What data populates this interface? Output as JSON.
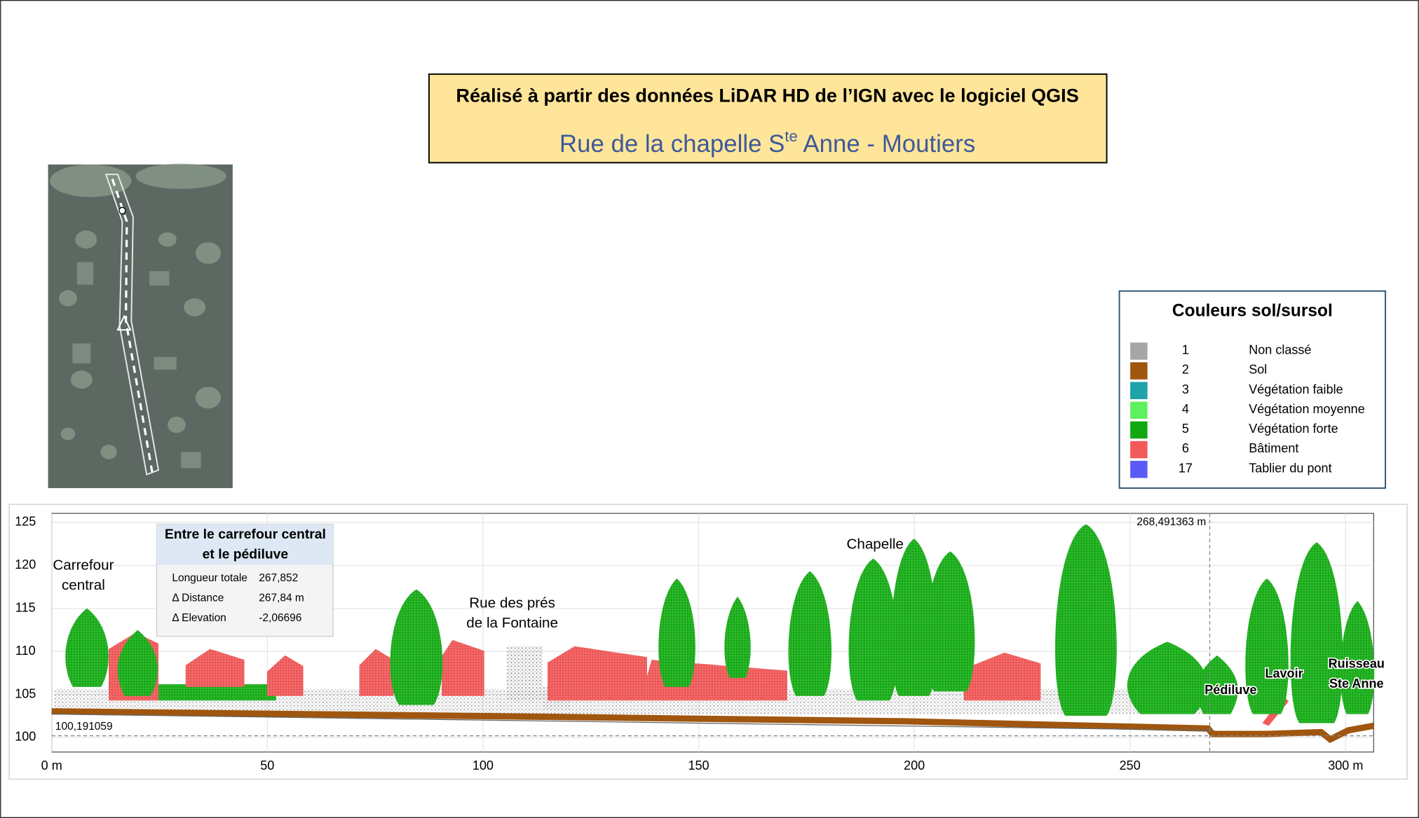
{
  "header": {
    "title": "Réalisé à partir des données LiDAR HD de l’IGN avec le logiciel QGIS",
    "subtitle": {
      "before": "Rue de la chapelle S",
      "sup": "te",
      "after": " Anne - Moutiers"
    }
  },
  "legend": {
    "title": "Couleurs sol/sursol",
    "items": [
      {
        "code": 1,
        "label": "Non classé",
        "color": "#a6a6a6"
      },
      {
        "code": 2,
        "label": "Sol",
        "color": "#a0560e"
      },
      {
        "code": 3,
        "label": "Végétation faible",
        "color": "#1fa3a8"
      },
      {
        "code": 4,
        "label": "Végétation moyenne",
        "color": "#5ef05e"
      },
      {
        "code": 5,
        "label": "Végétation forte",
        "color": "#12a812"
      },
      {
        "code": 6,
        "label": "Bâtiment",
        "color": "#f25a5a"
      },
      {
        "code": 17,
        "label": "Tablier du pont",
        "color": "#5a5af5"
      }
    ]
  },
  "chart_data": {
    "type": "profile",
    "xlim": [
      0,
      306.5
    ],
    "ylim": [
      98.3,
      126.05
    ],
    "xticks": [
      {
        "value": 0,
        "label": "0 m"
      },
      50,
      100,
      150,
      200,
      250,
      {
        "value": 300,
        "label": "300 m"
      }
    ],
    "yticks": [
      100,
      105,
      110,
      115,
      120,
      125
    ],
    "grid": true,
    "ref_lines": [
      {
        "axis": "y",
        "value": 100.191059,
        "label": "100,191059"
      },
      {
        "axis": "x",
        "value": 268.491363,
        "label": "268,491363 m"
      }
    ],
    "annotations": [
      {
        "lines": [
          "Carrefour",
          "central"
        ]
      },
      {
        "lines": [
          "Rue des prés",
          "de la Fontaine"
        ]
      },
      {
        "lines": [
          "Chapelle"
        ]
      },
      {
        "lines": [
          "Pédiluve"
        ]
      },
      {
        "lines": [
          "Lavoir"
        ]
      },
      {
        "lines": [
          "Ruisseau",
          "Ste Anne"
        ]
      }
    ],
    "tooltip": {
      "title": [
        "Entre le carrefour central",
        "et le pédiluve"
      ],
      "rows": [
        [
          "Longueur totale",
          "267,852"
        ],
        [
          "Δ Distance",
          "267,84 m"
        ],
        [
          "Δ Elevation",
          "-2,06696"
        ]
      ]
    }
  }
}
